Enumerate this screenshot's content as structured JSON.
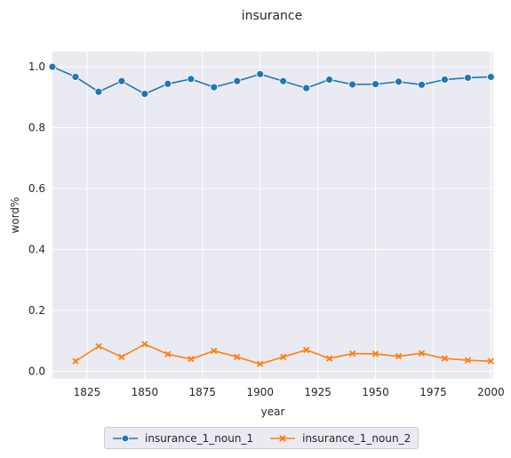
{
  "chart_data": {
    "type": "line",
    "title": "insurance",
    "xlabel": "year",
    "ylabel": "word%",
    "xlim": [
      1810,
      2001
    ],
    "ylim": [
      -0.025,
      1.05
    ],
    "xticks": [
      1825,
      1850,
      1875,
      1900,
      1925,
      1950,
      1975,
      2000
    ],
    "yticks": [
      0.0,
      0.2,
      0.4,
      0.6,
      0.8,
      1.0
    ],
    "xtick_labels": [
      "1825",
      "1850",
      "1875",
      "1900",
      "1925",
      "1950",
      "1975",
      "2000"
    ],
    "ytick_labels": [
      "0.0",
      "0.2",
      "0.4",
      "0.6",
      "0.8",
      "1.0"
    ],
    "grid": true,
    "legend_position": "bottom-center",
    "series": [
      {
        "name": "insurance_1_noun_1",
        "color": "#1f77b4",
        "marker": "circle",
        "x": [
          1810,
          1820,
          1830,
          1840,
          1850,
          1860,
          1870,
          1880,
          1890,
          1900,
          1910,
          1920,
          1930,
          1940,
          1950,
          1960,
          1970,
          1980,
          1990,
          2000
        ],
        "y": [
          1.0,
          0.967,
          0.918,
          0.953,
          0.911,
          0.944,
          0.96,
          0.933,
          0.953,
          0.976,
          0.953,
          0.93,
          0.958,
          0.942,
          0.943,
          0.951,
          0.941,
          0.958,
          0.964,
          0.967
        ]
      },
      {
        "name": "insurance_1_noun_2",
        "color": "#ff7f0e",
        "marker": "x",
        "x": [
          1820,
          1830,
          1840,
          1850,
          1860,
          1870,
          1880,
          1890,
          1900,
          1910,
          1920,
          1930,
          1940,
          1950,
          1960,
          1970,
          1980,
          1990,
          2000
        ],
        "y": [
          0.033,
          0.082,
          0.047,
          0.089,
          0.056,
          0.04,
          0.067,
          0.047,
          0.024,
          0.047,
          0.07,
          0.042,
          0.058,
          0.057,
          0.049,
          0.059,
          0.042,
          0.036,
          0.033
        ]
      }
    ]
  }
}
